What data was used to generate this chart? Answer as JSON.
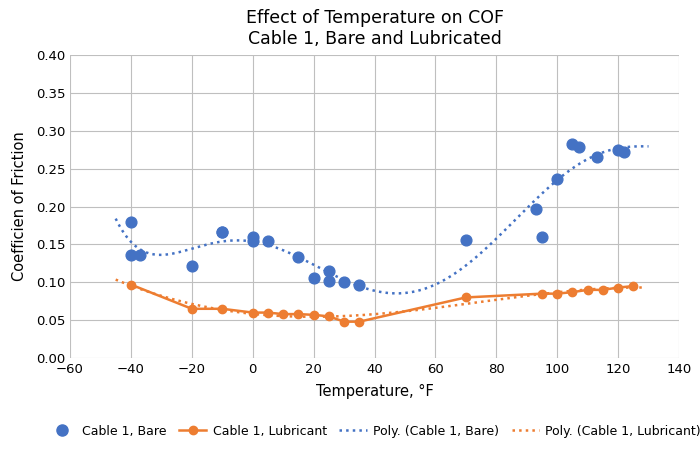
{
  "title": "Effect of Temperature on COF\nCable 1, Bare and Lubricated",
  "xlabel": "Temperature, °F",
  "ylabel": "Coefficien of Friction",
  "xlim": [
    -60,
    140
  ],
  "ylim": [
    0.0,
    0.4
  ],
  "xticks": [
    -60,
    -40,
    -20,
    0,
    20,
    40,
    60,
    80,
    100,
    120,
    140
  ],
  "yticks": [
    0.0,
    0.05,
    0.1,
    0.15,
    0.2,
    0.25,
    0.3,
    0.35,
    0.4
  ],
  "bare_x": [
    -40,
    -40,
    -37,
    -20,
    -10,
    -10,
    0,
    0,
    5,
    15,
    20,
    25,
    25,
    30,
    35,
    70,
    93,
    95,
    100,
    105,
    107,
    113,
    120,
    122
  ],
  "bare_y": [
    0.18,
    0.136,
    0.136,
    0.121,
    0.167,
    0.167,
    0.16,
    0.155,
    0.155,
    0.133,
    0.106,
    0.102,
    0.115,
    0.1,
    0.097,
    0.156,
    0.197,
    0.16,
    0.237,
    0.283,
    0.278,
    0.265,
    0.275,
    0.272
  ],
  "lub_x": [
    -40,
    -20,
    -10,
    0,
    5,
    10,
    15,
    20,
    25,
    30,
    35,
    70,
    95,
    100,
    105,
    110,
    115,
    120,
    125
  ],
  "lub_y": [
    0.097,
    0.065,
    0.065,
    0.06,
    0.06,
    0.058,
    0.058,
    0.057,
    0.055,
    0.048,
    0.048,
    0.08,
    0.085,
    0.085,
    0.087,
    0.09,
    0.09,
    0.093,
    0.095
  ],
  "bare_color": "#4472C4",
  "lub_color": "#ED7D31",
  "background_color": "#ffffff",
  "grid_color": "#bfbfbf"
}
